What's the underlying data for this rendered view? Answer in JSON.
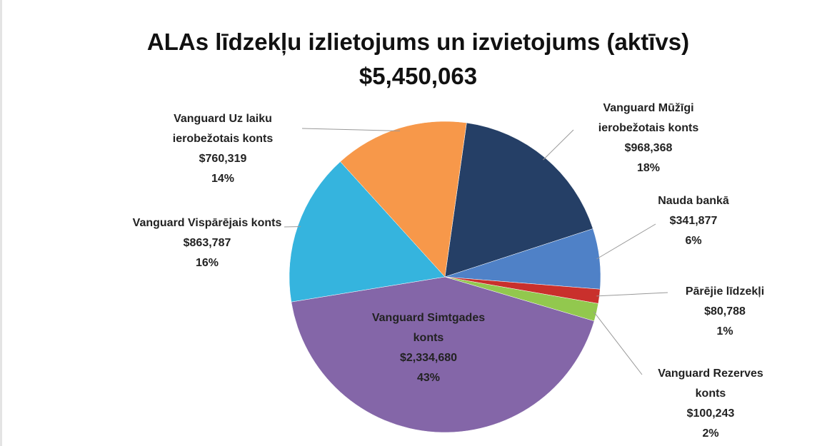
{
  "chart_data": {
    "type": "pie",
    "title": "ALAs līdzekļu izlietojums un izvietojums (aktīvs)",
    "subtitle": "$5,450,063",
    "categories": [
      "Vanguard Mūžīgi ierobežotais konts",
      "Nauda bankā",
      "Pārējie līdzekļi",
      "Vanguard Rezerves konts",
      "Vanguard Simtgades konts",
      "Vanguard Vispārējais konts",
      "Vanguard Uz laiku ierobežotais konts"
    ],
    "values": [
      968368,
      341877,
      80788,
      100243,
      2334680,
      863787,
      760319
    ],
    "value_labels": [
      "$968,368",
      "$341,877",
      "$80,788",
      "$100,243",
      "$2,334,680",
      "$863,787",
      "$760,319"
    ],
    "percents": [
      18,
      6,
      1,
      2,
      43,
      16,
      14
    ],
    "percent_labels": [
      "18%",
      "6%",
      "1%",
      "2%",
      "43%",
      "16%",
      "14%"
    ],
    "colors": [
      "#253f66",
      "#4f81c7",
      "#c9302c",
      "#92c84e",
      "#8466a8",
      "#35b4de",
      "#f7984a"
    ]
  }
}
